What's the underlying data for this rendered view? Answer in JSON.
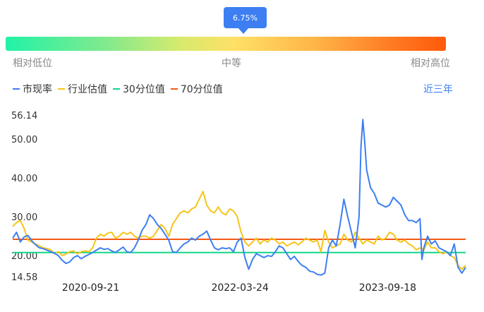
{
  "gauge": {
    "marker_label": "6.75%",
    "marker_position": 0.5475,
    "low_label": "相对低位",
    "mid_label": "中等",
    "high_label": "相对高位"
  },
  "legend": [
    {
      "label": "市现率",
      "color": "#3d7ff2"
    },
    {
      "label": "行业估值",
      "color": "#f5c518"
    },
    {
      "label": "30分位值",
      "color": "#11d68a"
    },
    {
      "label": "70分位值",
      "color": "#f35a17"
    }
  ],
  "range_label": "近三年",
  "chart_data": {
    "type": "line",
    "y_ticks": [
      "56.14",
      "50.00",
      "40.00",
      "30.00",
      "20.00",
      "14.58"
    ],
    "ylim": [
      14.58,
      56.14
    ],
    "x_ticks": [
      "2020-09-21",
      "2022-03-24",
      "2023-09-18"
    ],
    "x_range": [
      "2019-12-09",
      "2024-07-01"
    ],
    "series": [
      {
        "name": "市现率",
        "color": "#3d7ff2",
        "points": [
          [
            "2019-12-09",
            24.5
          ],
          [
            "2019-12-23",
            26.0
          ],
          [
            "2020-01-06",
            23.5
          ],
          [
            "2020-01-20",
            24.8
          ],
          [
            "2020-02-03",
            25.2
          ],
          [
            "2020-02-17",
            23.8
          ],
          [
            "2020-03-02",
            22.8
          ],
          [
            "2020-03-16",
            22.0
          ],
          [
            "2020-03-30",
            21.8
          ],
          [
            "2020-04-13",
            21.4
          ],
          [
            "2020-04-27",
            21.0
          ],
          [
            "2020-05-11",
            20.6
          ],
          [
            "2020-05-25",
            20.0
          ],
          [
            "2020-06-08",
            18.8
          ],
          [
            "2020-06-22",
            18.0
          ],
          [
            "2020-07-06",
            18.4
          ],
          [
            "2020-07-20",
            19.5
          ],
          [
            "2020-08-03",
            20.0
          ],
          [
            "2020-08-17",
            19.2
          ],
          [
            "2020-08-31",
            19.8
          ],
          [
            "2020-09-14",
            20.3
          ],
          [
            "2020-09-28",
            20.8
          ],
          [
            "2020-10-12",
            21.4
          ],
          [
            "2020-10-26",
            22.0
          ],
          [
            "2020-11-09",
            21.6
          ],
          [
            "2020-11-23",
            21.8
          ],
          [
            "2020-12-07",
            21.2
          ],
          [
            "2020-12-21",
            20.8
          ],
          [
            "2021-01-04",
            21.5
          ],
          [
            "2021-01-18",
            22.2
          ],
          [
            "2021-02-01",
            21.0
          ],
          [
            "2021-02-15",
            20.8
          ],
          [
            "2021-03-01",
            22.0
          ],
          [
            "2021-03-15",
            24.0
          ],
          [
            "2021-03-29",
            26.5
          ],
          [
            "2021-04-12",
            28.0
          ],
          [
            "2021-04-26",
            30.5
          ],
          [
            "2021-05-10",
            29.5
          ],
          [
            "2021-05-24",
            28.0
          ],
          [
            "2021-06-07",
            27.0
          ],
          [
            "2021-06-21",
            25.5
          ],
          [
            "2021-07-05",
            24.0
          ],
          [
            "2021-07-19",
            21.0
          ],
          [
            "2021-08-02",
            20.8
          ],
          [
            "2021-08-16",
            22.0
          ],
          [
            "2021-08-30",
            23.0
          ],
          [
            "2021-09-13",
            23.5
          ],
          [
            "2021-09-27",
            24.5
          ],
          [
            "2021-10-11",
            24.0
          ],
          [
            "2021-10-25",
            25.0
          ],
          [
            "2021-11-08",
            25.5
          ],
          [
            "2021-11-22",
            26.3
          ],
          [
            "2021-12-06",
            24.0
          ],
          [
            "2021-12-20",
            22.0
          ],
          [
            "2022-01-03",
            21.5
          ],
          [
            "2022-01-17",
            22.0
          ],
          [
            "2022-01-31",
            21.8
          ],
          [
            "2022-02-14",
            22.0
          ],
          [
            "2022-02-28",
            21.0
          ],
          [
            "2022-03-14",
            23.5
          ],
          [
            "2022-03-28",
            24.5
          ],
          [
            "2022-04-11",
            19.5
          ],
          [
            "2022-04-25",
            16.5
          ],
          [
            "2022-05-09",
            19.0
          ],
          [
            "2022-05-23",
            20.5
          ],
          [
            "2022-06-06",
            20.0
          ],
          [
            "2022-06-20",
            19.5
          ],
          [
            "2022-07-04",
            20.0
          ],
          [
            "2022-07-18",
            19.8
          ],
          [
            "2022-08-01",
            21.0
          ],
          [
            "2022-08-15",
            22.5
          ],
          [
            "2022-08-29",
            22.0
          ],
          [
            "2022-09-12",
            20.5
          ],
          [
            "2022-09-26",
            19.0
          ],
          [
            "2022-10-10",
            19.8
          ],
          [
            "2022-10-24",
            18.5
          ],
          [
            "2022-11-07",
            17.5
          ],
          [
            "2022-11-21",
            17.0
          ],
          [
            "2022-12-05",
            16.0
          ],
          [
            "2022-12-19",
            15.8
          ],
          [
            "2023-01-02",
            15.2
          ],
          [
            "2023-01-16",
            15.0
          ],
          [
            "2023-01-30",
            15.5
          ],
          [
            "2023-02-13",
            22.0
          ],
          [
            "2023-02-27",
            24.0
          ],
          [
            "2023-03-13",
            22.5
          ],
          [
            "2023-03-27",
            28.0
          ],
          [
            "2023-04-10",
            34.5
          ],
          [
            "2023-04-24",
            30.0
          ],
          [
            "2023-05-08",
            26.0
          ],
          [
            "2023-05-22",
            22.0
          ],
          [
            "2023-06-05",
            30.0
          ],
          [
            "2023-06-12",
            48.0
          ],
          [
            "2023-06-19",
            55.0
          ],
          [
            "2023-06-26",
            49.0
          ],
          [
            "2023-07-03",
            42.0
          ],
          [
            "2023-07-17",
            37.5
          ],
          [
            "2023-07-31",
            36.0
          ],
          [
            "2023-08-14",
            33.5
          ],
          [
            "2023-08-28",
            33.0
          ],
          [
            "2023-09-11",
            32.5
          ],
          [
            "2023-09-25",
            33.0
          ],
          [
            "2023-10-09",
            35.0
          ],
          [
            "2023-10-23",
            34.0
          ],
          [
            "2023-11-06",
            33.0
          ],
          [
            "2023-11-20",
            30.5
          ],
          [
            "2023-12-04",
            29.0
          ],
          [
            "2023-12-18",
            29.0
          ],
          [
            "2024-01-01",
            28.5
          ],
          [
            "2024-01-15",
            29.5
          ],
          [
            "2024-01-22",
            19.0
          ],
          [
            "2024-01-29",
            22.0
          ],
          [
            "2024-02-12",
            25.0
          ],
          [
            "2024-02-26",
            23.0
          ],
          [
            "2024-03-11",
            23.8
          ],
          [
            "2024-03-25",
            22.0
          ],
          [
            "2024-04-08",
            21.5
          ],
          [
            "2024-04-22",
            21.0
          ],
          [
            "2024-05-06",
            20.0
          ],
          [
            "2024-05-20",
            23.0
          ],
          [
            "2024-06-03",
            17.0
          ],
          [
            "2024-06-17",
            15.5
          ],
          [
            "2024-07-01",
            17.0
          ]
        ]
      },
      {
        "name": "行业估值",
        "color": "#f5c518",
        "points": [
          [
            "2019-12-09",
            27.5
          ],
          [
            "2019-12-23",
            28.5
          ],
          [
            "2020-01-06",
            29.0
          ],
          [
            "2020-01-20",
            27.0
          ],
          [
            "2020-02-03",
            24.0
          ],
          [
            "2020-02-17",
            23.5
          ],
          [
            "2020-03-02",
            23.0
          ],
          [
            "2020-03-16",
            22.5
          ],
          [
            "2020-03-30",
            22.0
          ],
          [
            "2020-04-13",
            21.8
          ],
          [
            "2020-04-27",
            21.5
          ],
          [
            "2020-05-11",
            20.5
          ],
          [
            "2020-05-25",
            21.0
          ],
          [
            "2020-06-08",
            20.0
          ],
          [
            "2020-06-22",
            20.4
          ],
          [
            "2020-07-06",
            21.0
          ],
          [
            "2020-07-20",
            21.2
          ],
          [
            "2020-08-03",
            20.5
          ],
          [
            "2020-08-17",
            21.0
          ],
          [
            "2020-08-31",
            21.2
          ],
          [
            "2020-09-14",
            21.0
          ],
          [
            "2020-09-28",
            22.0
          ],
          [
            "2020-10-12",
            24.5
          ],
          [
            "2020-10-26",
            25.5
          ],
          [
            "2020-11-09",
            25.0
          ],
          [
            "2020-11-23",
            25.8
          ],
          [
            "2020-12-07",
            26.0
          ],
          [
            "2020-12-21",
            24.5
          ],
          [
            "2021-01-04",
            25.0
          ],
          [
            "2021-01-18",
            26.0
          ],
          [
            "2021-02-01",
            25.5
          ],
          [
            "2021-02-15",
            26.0
          ],
          [
            "2021-03-01",
            25.0
          ],
          [
            "2021-03-15",
            24.5
          ],
          [
            "2021-03-29",
            25.0
          ],
          [
            "2021-04-12",
            25.0
          ],
          [
            "2021-04-26",
            24.5
          ],
          [
            "2021-05-10",
            25.0
          ],
          [
            "2021-05-24",
            26.5
          ],
          [
            "2021-06-07",
            28.0
          ],
          [
            "2021-06-21",
            27.0
          ],
          [
            "2021-07-05",
            25.0
          ],
          [
            "2021-07-19",
            28.0
          ],
          [
            "2021-08-02",
            29.5
          ],
          [
            "2021-08-16",
            31.0
          ],
          [
            "2021-08-30",
            31.5
          ],
          [
            "2021-09-13",
            31.0
          ],
          [
            "2021-09-27",
            32.0
          ],
          [
            "2021-10-11",
            32.5
          ],
          [
            "2021-10-25",
            34.5
          ],
          [
            "2021-11-08",
            36.5
          ],
          [
            "2021-11-22",
            33.0
          ],
          [
            "2021-12-06",
            31.5
          ],
          [
            "2021-12-20",
            31.0
          ],
          [
            "2022-01-03",
            32.5
          ],
          [
            "2022-01-17",
            31.0
          ],
          [
            "2022-01-31",
            30.5
          ],
          [
            "2022-02-14",
            32.0
          ],
          [
            "2022-02-28",
            31.5
          ],
          [
            "2022-03-14",
            30.0
          ],
          [
            "2022-03-28",
            26.0
          ],
          [
            "2022-04-11",
            23.5
          ],
          [
            "2022-04-25",
            22.5
          ],
          [
            "2022-05-09",
            23.5
          ],
          [
            "2022-05-23",
            24.5
          ],
          [
            "2022-06-06",
            23.0
          ],
          [
            "2022-06-20",
            24.0
          ],
          [
            "2022-07-04",
            23.5
          ],
          [
            "2022-07-18",
            24.5
          ],
          [
            "2022-08-01",
            24.0
          ],
          [
            "2022-08-15",
            23.0
          ],
          [
            "2022-08-29",
            23.5
          ],
          [
            "2022-09-12",
            22.5
          ],
          [
            "2022-09-26",
            23.0
          ],
          [
            "2022-10-10",
            23.5
          ],
          [
            "2022-10-24",
            22.8
          ],
          [
            "2022-11-07",
            23.5
          ],
          [
            "2022-11-21",
            24.5
          ],
          [
            "2022-12-05",
            24.0
          ],
          [
            "2022-12-19",
            23.5
          ],
          [
            "2023-01-02",
            24.0
          ],
          [
            "2023-01-16",
            21.0
          ],
          [
            "2023-01-30",
            26.5
          ],
          [
            "2023-02-13",
            23.5
          ],
          [
            "2023-02-27",
            22.0
          ],
          [
            "2023-03-13",
            22.5
          ],
          [
            "2023-03-27",
            23.0
          ],
          [
            "2023-04-10",
            25.5
          ],
          [
            "2023-04-24",
            24.0
          ],
          [
            "2023-05-08",
            23.5
          ],
          [
            "2023-05-22",
            26.0
          ],
          [
            "2023-06-05",
            24.5
          ],
          [
            "2023-06-19",
            23.0
          ],
          [
            "2023-07-03",
            24.0
          ],
          [
            "2023-07-17",
            23.5
          ],
          [
            "2023-07-31",
            23.0
          ],
          [
            "2023-08-14",
            25.0
          ],
          [
            "2023-08-28",
            24.0
          ],
          [
            "2023-09-11",
            24.5
          ],
          [
            "2023-09-25",
            26.0
          ],
          [
            "2023-10-09",
            25.5
          ],
          [
            "2023-10-23",
            24.0
          ],
          [
            "2023-11-06",
            23.5
          ],
          [
            "2023-11-20",
            24.0
          ],
          [
            "2023-12-04",
            23.0
          ],
          [
            "2023-12-18",
            22.5
          ],
          [
            "2024-01-01",
            21.5
          ],
          [
            "2024-01-15",
            22.0
          ],
          [
            "2024-01-29",
            21.5
          ],
          [
            "2024-02-12",
            23.5
          ],
          [
            "2024-02-26",
            22.0
          ],
          [
            "2024-03-11",
            22.0
          ],
          [
            "2024-03-25",
            21.0
          ],
          [
            "2024-04-08",
            20.5
          ],
          [
            "2024-04-22",
            21.0
          ],
          [
            "2024-05-06",
            20.0
          ],
          [
            "2024-05-20",
            19.5
          ],
          [
            "2024-06-03",
            17.5
          ],
          [
            "2024-06-17",
            16.5
          ],
          [
            "2024-07-01",
            17.5
          ]
        ]
      }
    ],
    "reference_lines": [
      {
        "name": "30分位值",
        "value": 20.8,
        "color": "#11d68a"
      },
      {
        "name": "70分位值",
        "value": 24.2,
        "color": "#f35a17"
      }
    ]
  }
}
